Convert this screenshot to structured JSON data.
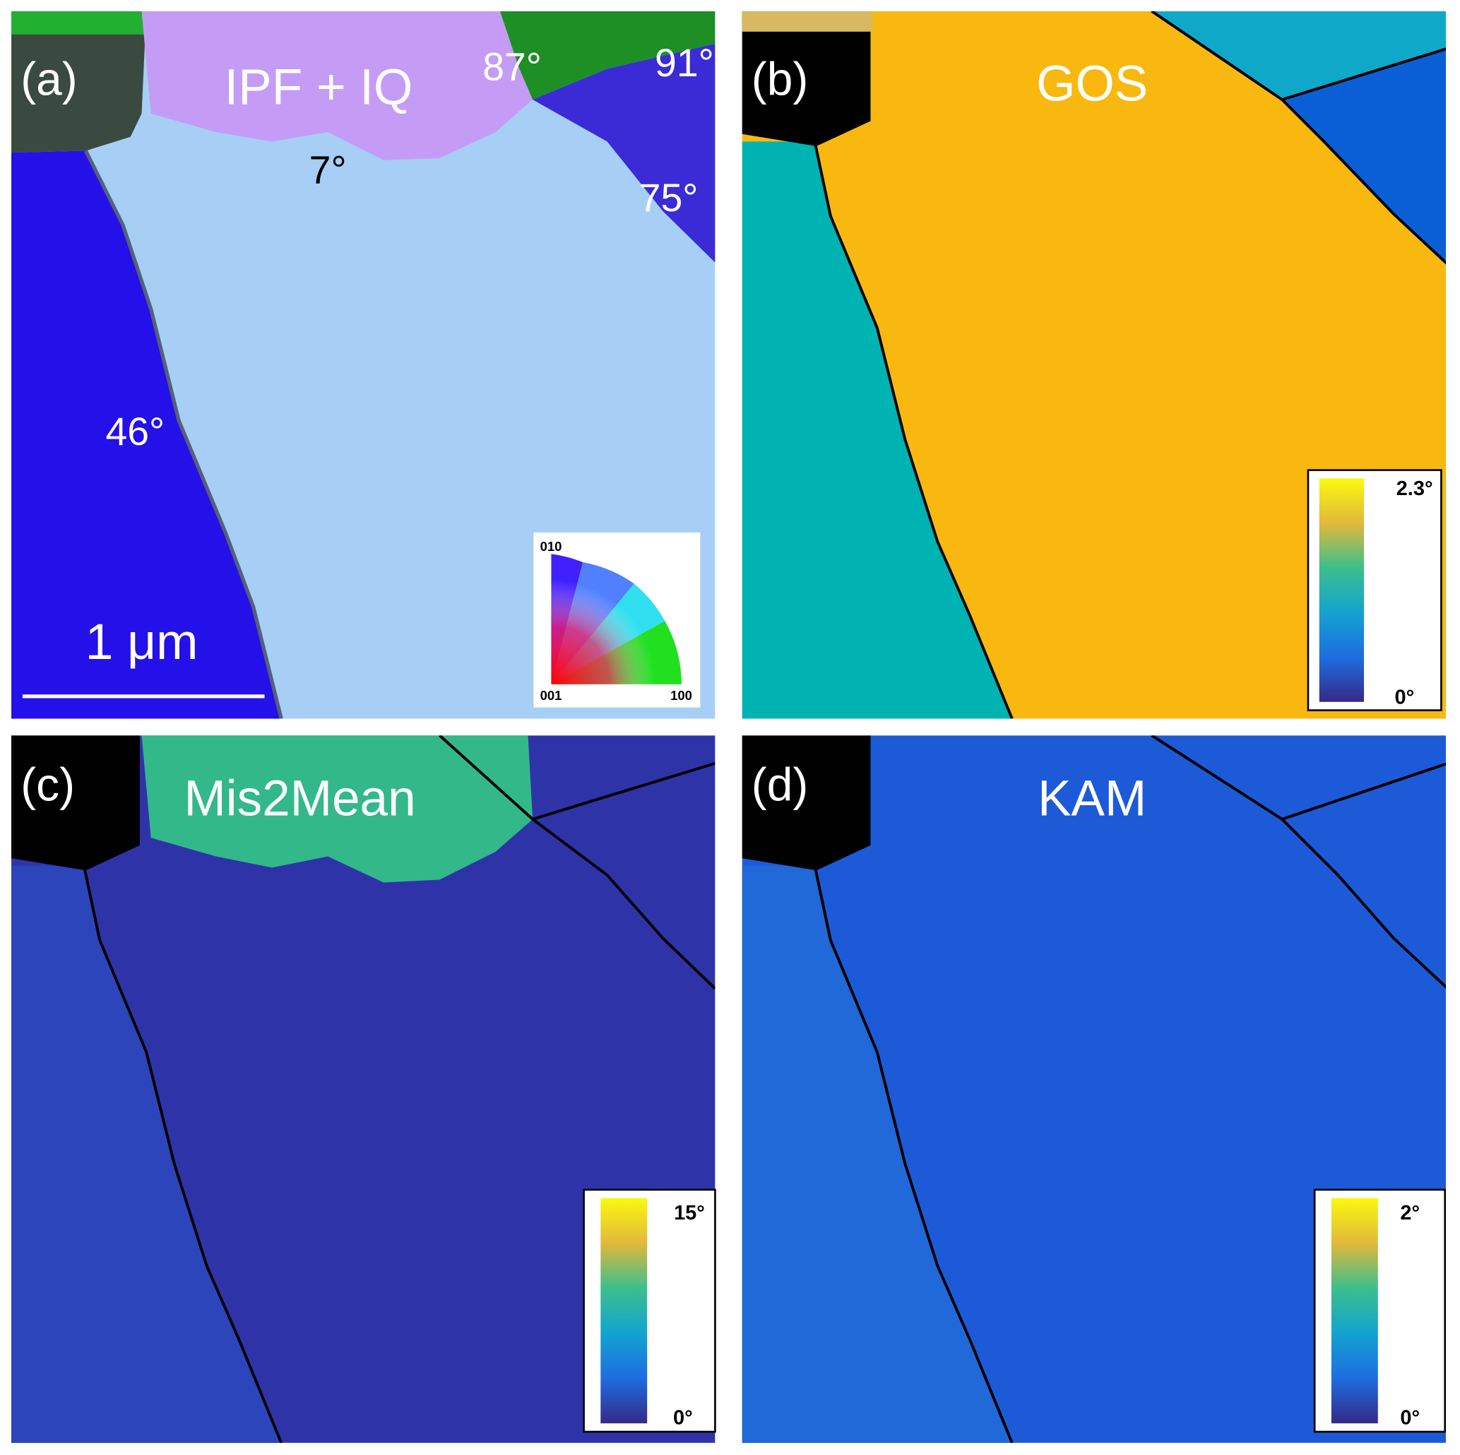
{
  "panels": [
    {
      "label": "(a)",
      "title": "IPF + IQ",
      "annotations": [
        "87°",
        "91°",
        "7°",
        "75°",
        "46°"
      ],
      "scale_bar": "1 μm",
      "ipf_legend": [
        "010",
        "001",
        "100"
      ]
    },
    {
      "label": "(b)",
      "title": "GOS",
      "colorbar": {
        "max": "2.3°",
        "min": "0°"
      }
    },
    {
      "label": "(c)",
      "title": "Mis2Mean",
      "colorbar": {
        "max": "15°",
        "min": "0°"
      }
    },
    {
      "label": "(d)",
      "title": "KAM",
      "colorbar": {
        "max": "2°",
        "min": "0°"
      }
    }
  ]
}
